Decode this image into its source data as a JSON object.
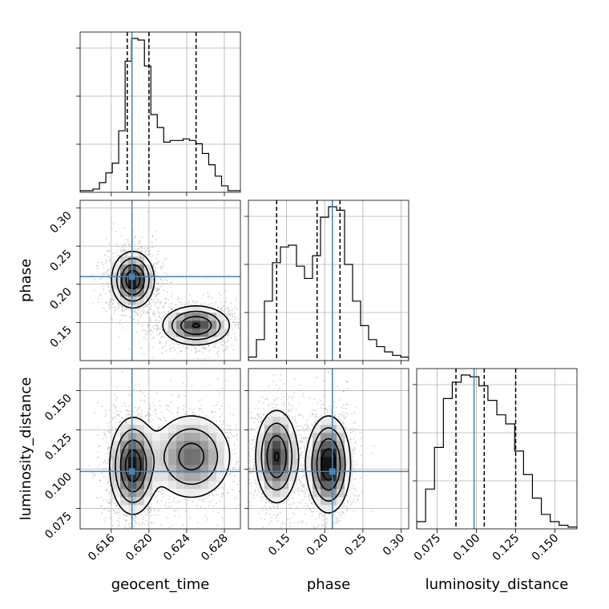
{
  "chart_data": {
    "type": "corner",
    "parameters": [
      "geocent_time",
      "phase",
      "luminosity_distance"
    ],
    "axis_labels": {
      "x": [
        "geocent_time",
        "phase",
        "luminosity_distance"
      ],
      "y": [
        "",
        "phase",
        "luminosity_distance"
      ]
    },
    "ranges": [
      [
        0.6127,
        0.6297
      ],
      [
        0.1,
        0.31
      ],
      [
        0.062,
        0.164
      ]
    ],
    "ticks": [
      [
        0.616,
        0.62,
        0.624,
        0.628
      ],
      [
        0.15,
        0.2,
        0.25,
        0.3
      ],
      [
        0.075,
        0.1,
        0.125,
        0.15
      ]
    ],
    "tick_labels": [
      [
        "0.616",
        "0.620",
        "0.624",
        "0.628"
      ],
      [
        "0.15",
        "0.20",
        "0.25",
        "0.30"
      ],
      [
        "0.075",
        "0.100",
        "0.125",
        "0.150"
      ]
    ],
    "truths": [
      0.6182,
      0.21,
      0.0985
    ],
    "quantiles": [
      [
        0.6177,
        0.62,
        0.625
      ],
      [
        0.137,
        0.19,
        0.22
      ],
      [
        0.087,
        0.105,
        0.125
      ]
    ],
    "grid": true,
    "truth_color": "#4682b4",
    "hist_color": "#000000",
    "histograms": [
      {
        "param": "geocent_time",
        "edges": [
          0.6127,
          0.62975
        ],
        "counts": [
          1,
          1,
          2,
          6,
          12,
          18,
          38,
          81,
          95,
          94,
          78,
          48,
          40,
          31,
          32,
          32,
          33,
          32,
          30,
          24,
          17,
          10,
          4,
          1,
          1
        ]
      },
      {
        "param": "phase",
        "edges": [
          0.1,
          0.31
        ],
        "counts": [
          2,
          12,
          34,
          56,
          65,
          66,
          54,
          47,
          60,
          82,
          88,
          86,
          55,
          34,
          20,
          12,
          8,
          5,
          3,
          2
        ]
      },
      {
        "param": "luminosity_distance",
        "edges": [
          0.062,
          0.164
        ],
        "counts": [
          4,
          22,
          45,
          72,
          81,
          85,
          84,
          79,
          71,
          63,
          58,
          43,
          30,
          17,
          8,
          4,
          2,
          1
        ]
      }
    ],
    "joint": [
      {
        "x": "geocent_time",
        "y": "phase",
        "modes": [
          {
            "mx": 0.6183,
            "my": 0.206,
            "sx": 0.0011,
            "sy": 0.018,
            "w": 0.55
          },
          {
            "mx": 0.625,
            "my": 0.146,
            "sx": 0.0018,
            "sy": 0.013,
            "w": 0.45
          }
        ]
      },
      {
        "x": "geocent_time",
        "y": "luminosity_distance",
        "modes": [
          {
            "mx": 0.6183,
            "my": 0.102,
            "sx": 0.0012,
            "sy": 0.015,
            "w": 0.6
          },
          {
            "mx": 0.6245,
            "my": 0.108,
            "sx": 0.0022,
            "sy": 0.014,
            "w": 0.4
          }
        ]
      },
      {
        "x": "phase",
        "y": "luminosity_distance",
        "modes": [
          {
            "mx": 0.137,
            "my": 0.108,
            "sx": 0.014,
            "sy": 0.015,
            "w": 0.45
          },
          {
            "mx": 0.205,
            "my": 0.103,
            "sx": 0.014,
            "sy": 0.015,
            "w": 0.55
          }
        ]
      }
    ]
  }
}
